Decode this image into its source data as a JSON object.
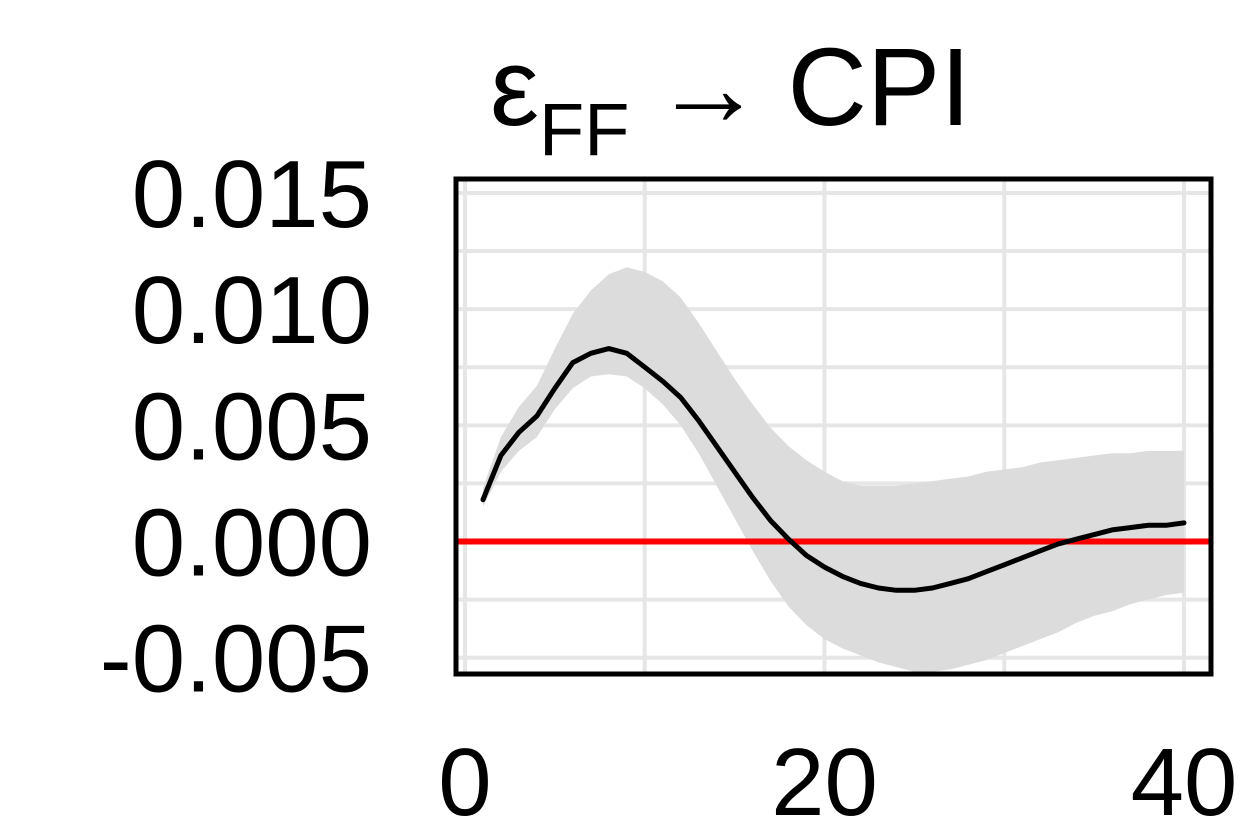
{
  "chart_data": {
    "type": "line",
    "title": {
      "shock_symbol": "ε",
      "shock_subscript": "FF",
      "arrow": "→",
      "response_variable": "CPI"
    },
    "xlabel": "",
    "ylabel": "",
    "xlim": [
      -0.5,
      41.5
    ],
    "ylim": [
      -0.0057,
      0.0156
    ],
    "x_ticks": [
      0,
      20,
      40
    ],
    "y_ticks": [
      0.015,
      0.01,
      0.005,
      0.0,
      -0.005
    ],
    "x_tick_labels": [
      "0",
      "20",
      "40"
    ],
    "y_tick_labels": [
      "0.015",
      "0.010",
      "0.005",
      "0.000",
      "-0.005"
    ],
    "grid": true,
    "x_minor_grid": [
      10,
      30
    ],
    "y_minor_grid": [
      0.0125,
      0.0075,
      0.0025,
      -0.0025
    ],
    "legend": "none",
    "colors": {
      "response_line": "#000000",
      "zero_line": "#ff0000",
      "confidence_band": "#dcdcdc",
      "grid": "#e6e6e6",
      "frame": "#000000"
    },
    "x": [
      1,
      2,
      3,
      4,
      5,
      6,
      7,
      8,
      9,
      10,
      11,
      12,
      13,
      14,
      15,
      16,
      17,
      18,
      19,
      20,
      21,
      22,
      23,
      24,
      25,
      26,
      27,
      28,
      29,
      30,
      31,
      32,
      33,
      34,
      35,
      36,
      37,
      38,
      39,
      40
    ],
    "series": [
      {
        "role": "median_response",
        "values": [
          0.0018,
          0.0037,
          0.0047,
          0.0054,
          0.0066,
          0.0077,
          0.0081,
          0.0083,
          0.0081,
          0.0075,
          0.0069,
          0.0062,
          0.0052,
          0.0041,
          0.003,
          0.0019,
          0.0009,
          0.0001,
          -0.0006,
          -0.0011,
          -0.0015,
          -0.0018,
          -0.002,
          -0.0021,
          -0.0021,
          -0.002,
          -0.0018,
          -0.0016,
          -0.0013,
          -0.001,
          -0.0007,
          -0.0004,
          -0.0001,
          0.0001,
          0.0003,
          0.0005,
          0.0006,
          0.0007,
          0.0007,
          0.0008
        ]
      }
    ],
    "band": {
      "role": "confidence_band",
      "lower": [
        0.0015,
        0.003,
        0.0039,
        0.0045,
        0.0057,
        0.0066,
        0.0071,
        0.0072,
        0.0071,
        0.0066,
        0.0059,
        0.005,
        0.0038,
        0.0024,
        0.001,
        -0.0004,
        -0.0017,
        -0.0028,
        -0.0036,
        -0.0042,
        -0.0046,
        -0.0049,
        -0.0052,
        -0.0054,
        -0.0056,
        -0.0056,
        -0.0055,
        -0.0053,
        -0.0051,
        -0.0048,
        -0.0045,
        -0.0042,
        -0.0039,
        -0.0035,
        -0.0032,
        -0.003,
        -0.0027,
        -0.0025,
        -0.0023,
        -0.0022
      ],
      "upper": [
        0.0023,
        0.0045,
        0.0058,
        0.0067,
        0.0083,
        0.0098,
        0.0108,
        0.0115,
        0.0118,
        0.0116,
        0.0112,
        0.0105,
        0.0094,
        0.0082,
        0.007,
        0.0059,
        0.0049,
        0.0041,
        0.0035,
        0.003,
        0.0026,
        0.0024,
        0.0024,
        0.0024,
        0.0025,
        0.0026,
        0.0027,
        0.0028,
        0.003,
        0.0031,
        0.0032,
        0.0034,
        0.0035,
        0.0036,
        0.0037,
        0.0038,
        0.0038,
        0.0039,
        0.0039,
        0.0039
      ]
    },
    "reference_line": {
      "role": "zero_line",
      "y": 0.0
    }
  }
}
